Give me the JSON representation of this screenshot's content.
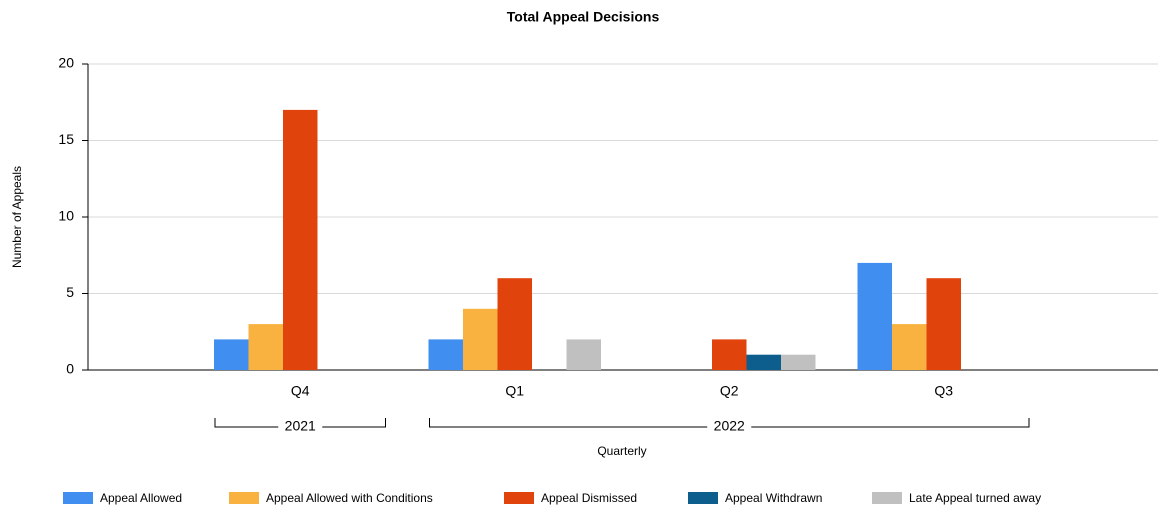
{
  "chart_data": {
    "type": "bar",
    "title": "Total Appeal Decisions",
    "x_label": "Quarterly",
    "y_label": "Number of Appeals",
    "groups": [
      {
        "name": "2021",
        "categories": [
          "Q4"
        ]
      },
      {
        "name": "2022",
        "categories": [
          "Q1",
          "Q2",
          "Q3"
        ]
      }
    ],
    "series": [
      {
        "name": "Appeal Allowed",
        "color": "#3f8ef0",
        "values": [
          2,
          2,
          0,
          7
        ]
      },
      {
        "name": "Appeal Allowed with Conditions",
        "color": "#f9b240",
        "values": [
          3,
          4,
          0,
          3
        ]
      },
      {
        "name": "Appeal Dismissed",
        "color": "#e0430c",
        "values": [
          17,
          6,
          2,
          6
        ]
      },
      {
        "name": "Appeal Withdrawn",
        "color": "#0d5e8d",
        "values": [
          0,
          0,
          1,
          0
        ]
      },
      {
        "name": "Late Appeal turned away",
        "color": "#c0c0c0",
        "values": [
          0,
          2,
          1,
          0
        ]
      }
    ],
    "ylim": [
      0,
      20
    ],
    "yticks": [
      0,
      5,
      10,
      15,
      20
    ],
    "grid": true,
    "legend": "bottom"
  }
}
